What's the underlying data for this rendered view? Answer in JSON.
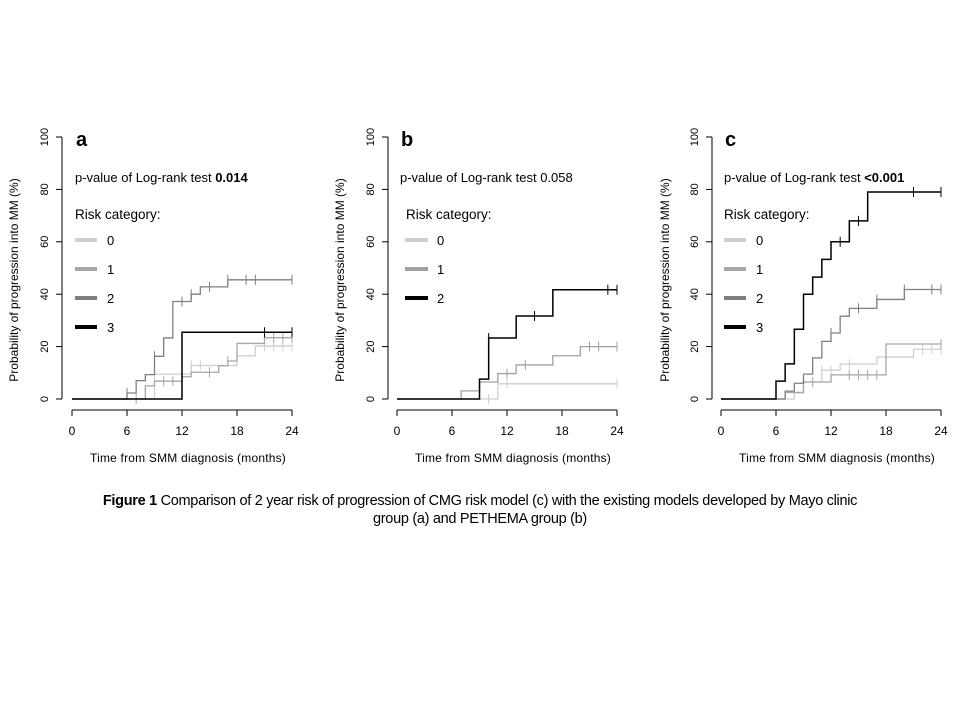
{
  "caption": {
    "label": "Figure 1",
    "line1": " Comparison of 2 year risk of progression of CMG risk model (c) with the existing models developed by Mayo clinic",
    "line2": "group (a) and PETHEMA group (b)"
  },
  "chart_data": [
    {
      "type": "line",
      "subtype": "kaplan-meier-cumulative-incidence",
      "panel": "a",
      "title": "a",
      "pvalue_text": "p-value of Log-rank test ",
      "pvalue": "0.014",
      "pvalue_bold": true,
      "legend_title": "Risk category:",
      "legend_placement": "top-left",
      "xlabel": "Time from SMM diagnosis (months)",
      "ylabel": "Probability of progression into MM (%)",
      "xlim": [
        0,
        24
      ],
      "ylim": [
        0,
        100
      ],
      "xticks": [
        0,
        6,
        12,
        18,
        24
      ],
      "yticks": [
        0,
        20,
        40,
        60,
        80,
        100
      ],
      "grid": false,
      "series": [
        {
          "name": "0",
          "color": "#cfcfcf",
          "steps": [
            [
              0,
              0
            ],
            [
              9,
              9.5
            ],
            [
              13,
              12.8
            ],
            [
              18,
              16.5
            ],
            [
              20,
              20.2
            ],
            [
              24,
              20.2
            ]
          ],
          "censors": [
            9,
            13,
            14,
            21,
            22,
            23,
            24
          ]
        },
        {
          "name": "1",
          "color": "#a6a6a6",
          "steps": [
            [
              0,
              0
            ],
            [
              8,
              5
            ],
            [
              9,
              6.8
            ],
            [
              12,
              8.5
            ],
            [
              13,
              10.2
            ],
            [
              16,
              12.7
            ],
            [
              17,
              14.5
            ],
            [
              18,
              21.2
            ],
            [
              21,
              23.4
            ],
            [
              24,
              23.4
            ]
          ],
          "censors": [
            7,
            10,
            11,
            15,
            17,
            22,
            23,
            24
          ]
        },
        {
          "name": "2",
          "color": "#7f7f7f",
          "steps": [
            [
              0,
              0
            ],
            [
              6,
              2.3
            ],
            [
              7,
              7
            ],
            [
              8,
              9.3
            ],
            [
              9,
              16.3
            ],
            [
              10,
              23.3
            ],
            [
              11,
              37.2
            ],
            [
              13,
              40
            ],
            [
              14,
              42.8
            ],
            [
              17,
              45.5
            ],
            [
              24,
              45.5
            ]
          ],
          "censors": [
            6,
            9,
            12,
            13,
            15,
            17,
            19,
            20,
            24
          ]
        },
        {
          "name": "3",
          "color": "#000000",
          "steps": [
            [
              0,
              0
            ],
            [
              12,
              25.5
            ],
            [
              24,
              25.5
            ]
          ],
          "censors": [
            21,
            24
          ]
        }
      ]
    },
    {
      "type": "line",
      "subtype": "kaplan-meier-cumulative-incidence",
      "panel": "b",
      "title": "b",
      "pvalue_text": "p-value of Log-rank test ",
      "pvalue": "0.058",
      "pvalue_bold": false,
      "legend_title": "Risk category:",
      "legend_placement": "top-left",
      "xlabel": "Time from SMM diagnosis (months)",
      "ylabel": "Probability of progression into MM (%)",
      "xlim": [
        0,
        24
      ],
      "ylim": [
        0,
        100
      ],
      "xticks": [
        0,
        6,
        12,
        18,
        24
      ],
      "yticks": [
        0,
        20,
        40,
        60,
        80,
        100
      ],
      "grid": false,
      "series": [
        {
          "name": "0",
          "color": "#cfcfcf",
          "steps": [
            [
              0,
              0
            ],
            [
              11,
              5.8
            ],
            [
              24,
              5.8
            ]
          ],
          "censors": [
            10,
            12,
            24
          ]
        },
        {
          "name": "1",
          "color": "#a0a0a0",
          "steps": [
            [
              0,
              0
            ],
            [
              7,
              3.1
            ],
            [
              9,
              6.5
            ],
            [
              11,
              9.7
            ],
            [
              13,
              13
            ],
            [
              17,
              16.5
            ],
            [
              20,
              20
            ],
            [
              24,
              20
            ]
          ],
          "censors": [
            12,
            14,
            21,
            22,
            24
          ]
        },
        {
          "name": "2",
          "color": "#000000",
          "steps": [
            [
              0,
              0
            ],
            [
              9,
              7.6
            ],
            [
              10,
              23.3
            ],
            [
              13,
              31.7
            ],
            [
              17,
              41.7
            ],
            [
              24,
              41.7
            ]
          ],
          "censors": [
            10,
            15,
            23,
            24
          ]
        }
      ]
    },
    {
      "type": "line",
      "subtype": "kaplan-meier-cumulative-incidence",
      "panel": "c",
      "title": "c",
      "pvalue_text": "p-value of Log-rank test ",
      "pvalue": "<0.001",
      "pvalue_bold": true,
      "legend_title": "Risk category:",
      "legend_placement": "top-left",
      "xlabel": "Time from SMM diagnosis (months)",
      "ylabel": "Probability of progression into MM (%)",
      "xlim": [
        0,
        24
      ],
      "ylim": [
        0,
        100
      ],
      "xticks": [
        0,
        6,
        12,
        18,
        24
      ],
      "yticks": [
        0,
        20,
        40,
        60,
        80,
        100
      ],
      "grid": false,
      "series": [
        {
          "name": "0",
          "color": "#cfcfcf",
          "steps": [
            [
              0,
              0
            ],
            [
              8,
              2.3
            ],
            [
              9,
              6.5
            ],
            [
              11,
              11
            ],
            [
              13,
              13.3
            ],
            [
              17,
              16
            ],
            [
              21,
              19
            ],
            [
              24,
              19
            ]
          ],
          "censors": [
            11,
            12,
            14,
            22,
            23,
            24
          ]
        },
        {
          "name": "1",
          "color": "#a6a6a6",
          "steps": [
            [
              0,
              0
            ],
            [
              7,
              2.5
            ],
            [
              9,
              6.5
            ],
            [
              12,
              9.2
            ],
            [
              18,
              21
            ],
            [
              24,
              21
            ]
          ],
          "censors": [
            10,
            14,
            15,
            16,
            17,
            24
          ]
        },
        {
          "name": "2",
          "color": "#7f7f7f",
          "steps": [
            [
              0,
              0
            ],
            [
              7,
              3
            ],
            [
              8,
              6
            ],
            [
              9,
              9.5
            ],
            [
              10,
              15.7
            ],
            [
              11,
              22
            ],
            [
              12,
              25.2
            ],
            [
              13,
              31.6
            ],
            [
              14,
              34.6
            ],
            [
              17,
              38
            ],
            [
              20,
              41.8
            ],
            [
              24,
              41.8
            ]
          ],
          "censors": [
            12,
            15,
            17,
            20,
            23,
            24
          ]
        },
        {
          "name": "3",
          "color": "#000000",
          "steps": [
            [
              0,
              0
            ],
            [
              6,
              6.8
            ],
            [
              7,
              13.4
            ],
            [
              8,
              26.6
            ],
            [
              9,
              40
            ],
            [
              10,
              46.5
            ],
            [
              11,
              53.3
            ],
            [
              12,
              60
            ],
            [
              14,
              68
            ],
            [
              16,
              79
            ],
            [
              24,
              79
            ]
          ],
          "censors": [
            13,
            15,
            21,
            24
          ]
        }
      ]
    }
  ]
}
